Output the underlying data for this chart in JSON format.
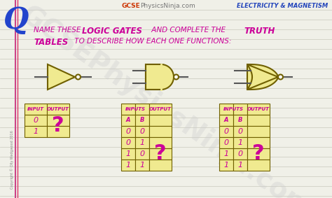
{
  "bg_color": "#f0f0e8",
  "line_color": "#c8c8bc",
  "gate_fill": "#f0ea90",
  "gate_edge": "#706000",
  "table_fill": "#f0ea90",
  "table_border": "#706000",
  "header_color": "#cc0099",
  "q_color": "#2244cc",
  "brand_gcse": "GCSE",
  "brand_rest": "PhysicsNinja.com",
  "subtitle": "ELECTRICITY & MAGNETISM",
  "copyright": "Copyright © Olly Wedgwood 2016",
  "watermark": "GCSEPhysicsNinja.com",
  "line_wire": "#555555"
}
